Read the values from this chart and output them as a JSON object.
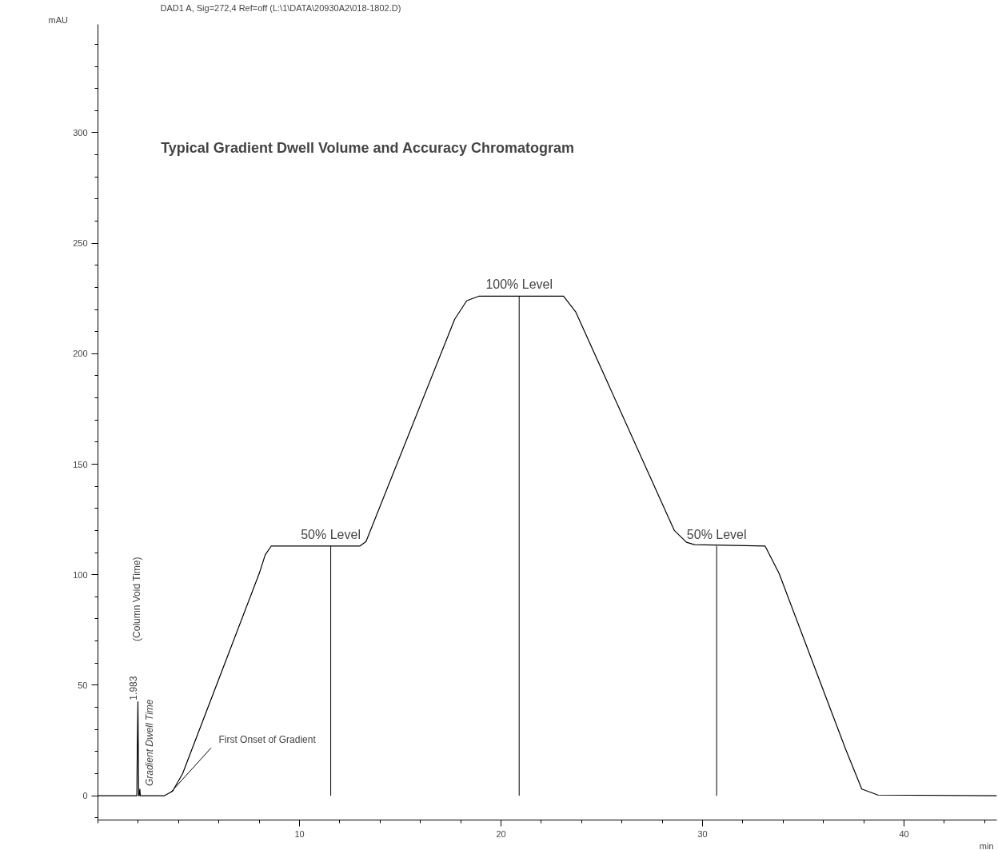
{
  "chart_data": {
    "type": "line",
    "title": "Typical Gradient Dwell Volume and Accuracy Chromatogram",
    "subtitle": "DAD1 A, Sig=272,4 Ref=off (L:\\1\\DATA\\20930A2\\018-1802.D)",
    "xlabel": "min",
    "ylabel": "mAU",
    "x": [
      0,
      1.93,
      1.95,
      1.983,
      2.02,
      2.04,
      2.08,
      2.1,
      2.13,
      3.3,
      3.7,
      4.2,
      8.0,
      8.3,
      8.6,
      9.5,
      13.0,
      13.3,
      17.7,
      18.3,
      18.9,
      23.1,
      23.7,
      28.6,
      29.2,
      29.6,
      33.1,
      33.8,
      37.1,
      37.9,
      38.7,
      44.6
    ],
    "series": [
      {
        "color": "#000000",
        "values": [
          0,
          0,
          20,
          42.5,
          0,
          0,
          3,
          0,
          0,
          0,
          2,
          10,
          100.5,
          109,
          113,
          113,
          113,
          115,
          215.6,
          224,
          226,
          226,
          219,
          120,
          114.7,
          113.6,
          113,
          100.5,
          21,
          3,
          0.3,
          0
        ]
      }
    ],
    "annotations": [
      {
        "text": "50% Level",
        "x": 11.55,
        "y": 113
      },
      {
        "text": "100% Level",
        "x": 20.9,
        "y": 226
      },
      {
        "text": "50% Level",
        "x": 30.7,
        "y": 113
      },
      {
        "text": "1.983",
        "x": 1.983,
        "y": 42.5
      },
      {
        "text": "First Onset of Gradient",
        "x": 3.6,
        "y": 1.4
      },
      "(Column Void Time)",
      "Gradient Dwell Time"
    ],
    "xlim": [
      0,
      44.6
    ],
    "ylim": [
      -11,
      349
    ],
    "xticks": [
      10,
      20,
      30,
      40
    ],
    "yticks": [
      0,
      50,
      100,
      150,
      200,
      250,
      300
    ],
    "grid": false,
    "marker": "none",
    "line_style": "solid"
  }
}
